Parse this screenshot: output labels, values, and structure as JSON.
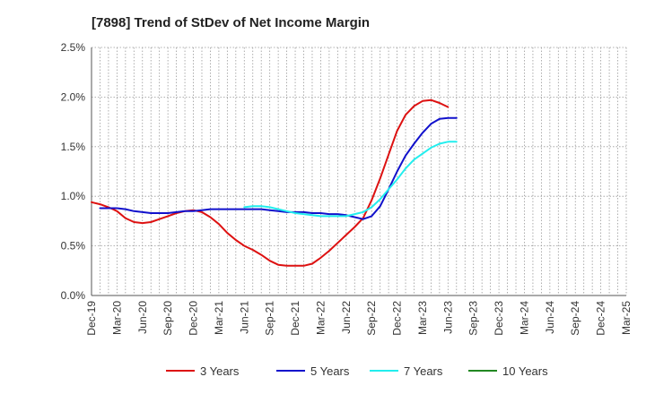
{
  "chart_data": {
    "type": "line",
    "title": "[7898]  Trend of StDev of Net Income Margin",
    "xlabel": "",
    "ylabel": "",
    "x_ticks": [
      "Dec-19",
      "Mar-20",
      "Jun-20",
      "Sep-20",
      "Dec-20",
      "Mar-21",
      "Jun-21",
      "Sep-21",
      "Dec-21",
      "Mar-22",
      "Jun-22",
      "Sep-22",
      "Dec-22",
      "Mar-23",
      "Jun-23",
      "Sep-23",
      "Dec-23",
      "Mar-24",
      "Jun-24",
      "Sep-24",
      "Dec-24",
      "Mar-25"
    ],
    "y_ticks": [
      "0.0%",
      "0.5%",
      "1.0%",
      "1.5%",
      "2.0%",
      "2.5%"
    ],
    "ylim": [
      0,
      2.5
    ],
    "grid": true,
    "legend_position": "bottom",
    "series": [
      {
        "name": "3 Years",
        "color": "#dd1111",
        "points": [
          [
            0,
            0.94
          ],
          [
            1,
            0.92
          ],
          [
            2,
            0.89
          ],
          [
            3,
            0.85
          ],
          [
            4,
            0.78
          ],
          [
            5,
            0.74
          ],
          [
            6,
            0.73
          ],
          [
            7,
            0.74
          ],
          [
            8,
            0.77
          ],
          [
            9,
            0.8
          ],
          [
            10,
            0.83
          ],
          [
            11,
            0.85
          ],
          [
            12,
            0.86
          ],
          [
            13,
            0.84
          ],
          [
            14,
            0.79
          ],
          [
            15,
            0.72
          ],
          [
            16,
            0.63
          ],
          [
            17,
            0.56
          ],
          [
            18,
            0.5
          ],
          [
            19,
            0.46
          ],
          [
            20,
            0.41
          ],
          [
            21,
            0.35
          ],
          [
            22,
            0.31
          ],
          [
            23,
            0.3
          ],
          [
            24,
            0.3
          ],
          [
            25,
            0.3
          ],
          [
            26,
            0.32
          ],
          [
            27,
            0.38
          ],
          [
            28,
            0.45
          ],
          [
            29,
            0.53
          ],
          [
            30,
            0.61
          ],
          [
            31,
            0.69
          ],
          [
            32,
            0.78
          ],
          [
            33,
            0.96
          ],
          [
            34,
            1.18
          ],
          [
            35,
            1.42
          ],
          [
            36,
            1.66
          ],
          [
            37,
            1.82
          ],
          [
            38,
            1.91
          ],
          [
            39,
            1.96
          ],
          [
            40,
            1.97
          ],
          [
            41,
            1.94
          ],
          [
            42,
            1.9
          ]
        ]
      },
      {
        "name": "5 Years",
        "color": "#1111cc",
        "points": [
          [
            1,
            0.88
          ],
          [
            2,
            0.88
          ],
          [
            3,
            0.88
          ],
          [
            4,
            0.87
          ],
          [
            5,
            0.85
          ],
          [
            6,
            0.84
          ],
          [
            7,
            0.83
          ],
          [
            8,
            0.83
          ],
          [
            9,
            0.83
          ],
          [
            10,
            0.84
          ],
          [
            11,
            0.85
          ],
          [
            12,
            0.85
          ],
          [
            13,
            0.86
          ],
          [
            14,
            0.87
          ],
          [
            15,
            0.87
          ],
          [
            16,
            0.87
          ],
          [
            17,
            0.87
          ],
          [
            18,
            0.87
          ],
          [
            19,
            0.87
          ],
          [
            20,
            0.87
          ],
          [
            21,
            0.86
          ],
          [
            22,
            0.85
          ],
          [
            23,
            0.84
          ],
          [
            24,
            0.84
          ],
          [
            25,
            0.84
          ],
          [
            26,
            0.83
          ],
          [
            27,
            0.83
          ],
          [
            28,
            0.82
          ],
          [
            29,
            0.82
          ],
          [
            30,
            0.81
          ],
          [
            31,
            0.79
          ],
          [
            32,
            0.77
          ],
          [
            33,
            0.8
          ],
          [
            34,
            0.9
          ],
          [
            35,
            1.07
          ],
          [
            36,
            1.25
          ],
          [
            37,
            1.41
          ],
          [
            38,
            1.53
          ],
          [
            39,
            1.64
          ],
          [
            40,
            1.73
          ],
          [
            41,
            1.78
          ],
          [
            42,
            1.79
          ],
          [
            43,
            1.79
          ]
        ]
      },
      {
        "name": "7 Years",
        "color": "#22eeee",
        "points": [
          [
            18,
            0.89
          ],
          [
            19,
            0.9
          ],
          [
            20,
            0.9
          ],
          [
            21,
            0.89
          ],
          [
            22,
            0.87
          ],
          [
            23,
            0.85
          ],
          [
            24,
            0.83
          ],
          [
            25,
            0.82
          ],
          [
            26,
            0.81
          ],
          [
            27,
            0.8
          ],
          [
            28,
            0.8
          ],
          [
            29,
            0.8
          ],
          [
            30,
            0.8
          ],
          [
            31,
            0.82
          ],
          [
            32,
            0.84
          ],
          [
            33,
            0.89
          ],
          [
            34,
            0.97
          ],
          [
            35,
            1.07
          ],
          [
            36,
            1.17
          ],
          [
            37,
            1.28
          ],
          [
            38,
            1.37
          ],
          [
            39,
            1.43
          ],
          [
            40,
            1.49
          ],
          [
            41,
            1.53
          ],
          [
            42,
            1.55
          ],
          [
            43,
            1.55
          ]
        ]
      },
      {
        "name": "10 Years",
        "color": "#228822",
        "points": []
      }
    ]
  }
}
